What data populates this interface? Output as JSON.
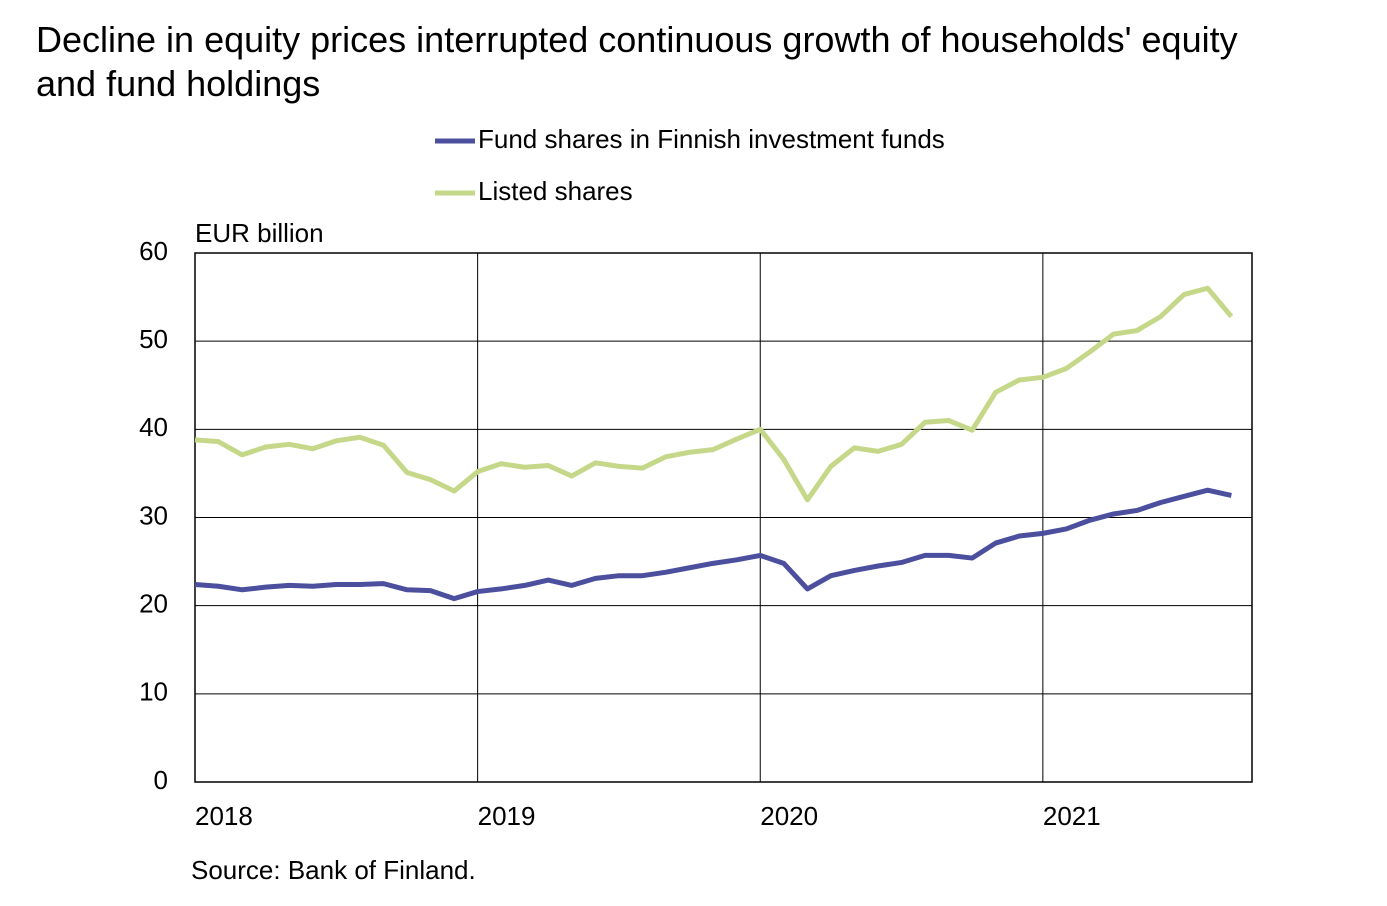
{
  "chart_data": {
    "type": "line",
    "title": "Decline in equity prices interrupted continuous growth of households' equity and fund holdings",
    "y_label": "EUR billion",
    "source": "Source: Bank of Finland.",
    "x": [
      2018,
      2018.083,
      2018.167,
      2018.25,
      2018.333,
      2018.417,
      2018.5,
      2018.583,
      2018.667,
      2018.75,
      2018.833,
      2018.917,
      2019,
      2019.083,
      2019.167,
      2019.25,
      2019.333,
      2019.417,
      2019.5,
      2019.583,
      2019.667,
      2019.75,
      2019.833,
      2019.917,
      2020,
      2020.083,
      2020.167,
      2020.25,
      2020.333,
      2020.417,
      2020.5,
      2020.583,
      2020.667,
      2020.75,
      2020.833,
      2020.917,
      2021,
      2021.083,
      2021.167,
      2021.25,
      2021.333,
      2021.417,
      2021.5,
      2021.583,
      2021.667
    ],
    "xlim": [
      2018,
      2021.74
    ],
    "xticks": [
      2018,
      2019,
      2020,
      2021
    ],
    "ylim": [
      0,
      60
    ],
    "yticks": [
      0,
      10,
      20,
      30,
      40,
      50,
      60
    ],
    "grid": true,
    "series": [
      {
        "name": "Fund shares in Finnish investment funds",
        "color": "#4b4f9e",
        "values": [
          22.4,
          22.2,
          21.8,
          22.1,
          22.3,
          22.2,
          22.4,
          22.4,
          22.5,
          21.8,
          21.7,
          20.8,
          21.6,
          21.9,
          22.3,
          22.9,
          22.3,
          23.1,
          23.4,
          23.4,
          23.8,
          24.3,
          24.8,
          25.2,
          25.7,
          24.8,
          21.9,
          23.4,
          24.0,
          24.5,
          24.9,
          25.7,
          25.7,
          25.4,
          27.1,
          27.9,
          28.2,
          28.7,
          29.7,
          30.4,
          30.8,
          31.7,
          32.4,
          33.1,
          32.5
        ]
      },
      {
        "name": "Listed shares",
        "color": "#c5d88a",
        "values": [
          38.8,
          38.6,
          37.1,
          38.0,
          38.3,
          37.8,
          38.7,
          39.1,
          38.2,
          35.1,
          34.3,
          33.0,
          35.2,
          36.1,
          35.7,
          35.9,
          34.7,
          36.2,
          35.8,
          35.6,
          36.9,
          37.4,
          37.7,
          38.9,
          40.0,
          36.6,
          32.0,
          35.8,
          37.9,
          37.5,
          38.3,
          40.8,
          41.0,
          39.9,
          44.2,
          45.6,
          45.9,
          46.9,
          48.8,
          50.8,
          51.2,
          52.8,
          55.3,
          56.0,
          52.8
        ]
      }
    ]
  }
}
